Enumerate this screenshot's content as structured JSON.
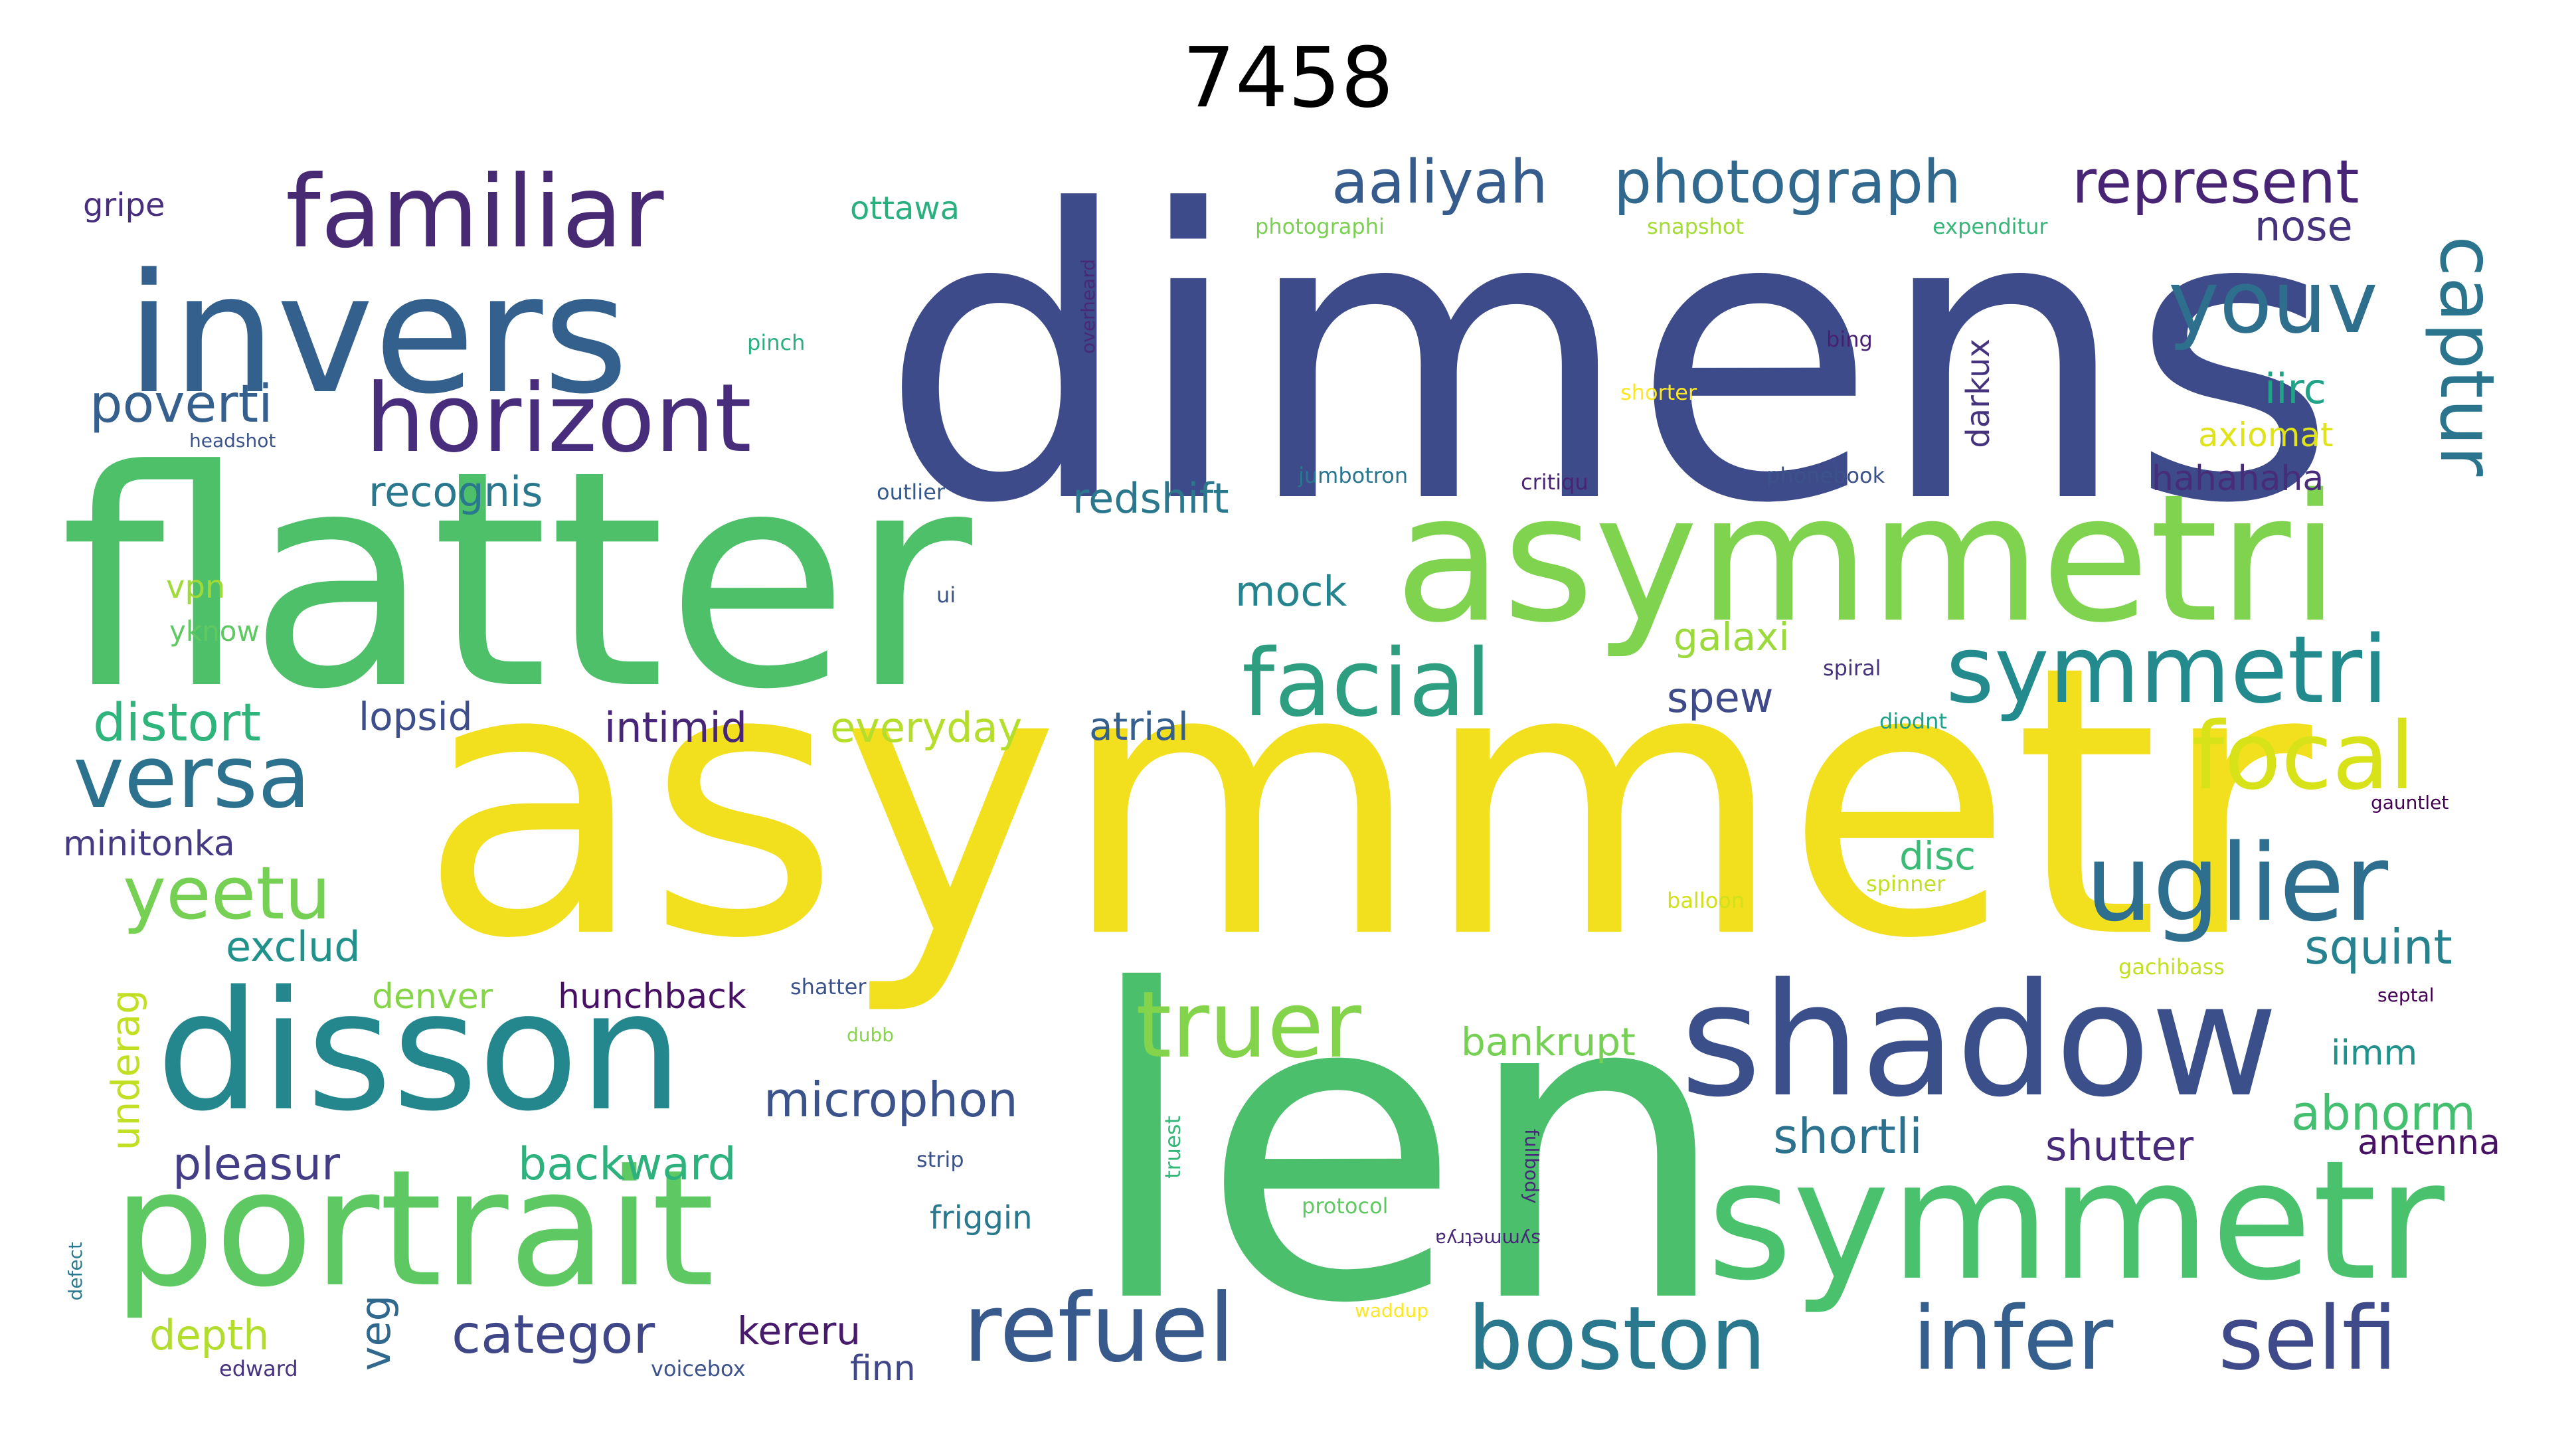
{
  "title": "7458",
  "word_cloud": {
    "words": [
      {
        "text": "dimens",
        "color": "#3e4b8a"
      },
      {
        "text": "asymmetr",
        "color": "#f2e01f"
      },
      {
        "text": "flatter",
        "color": "#4fc06a"
      },
      {
        "text": "len",
        "color": "#4cbf6c"
      },
      {
        "text": "asymmetri",
        "color": "#7fd34e"
      },
      {
        "text": "invers",
        "color": "#33608d"
      },
      {
        "text": "disson",
        "color": "#23878d"
      },
      {
        "text": "portrait",
        "color": "#5ec962"
      },
      {
        "text": "symmetr",
        "color": "#4ac16d"
      },
      {
        "text": "shadow",
        "color": "#3b4f8a"
      },
      {
        "text": "familiar",
        "color": "#482a74"
      },
      {
        "text": "horizont",
        "color": "#472d7b"
      },
      {
        "text": "youv",
        "color": "#2e6f8e"
      },
      {
        "text": "captur",
        "color": "#2b748e"
      },
      {
        "text": "symmetri",
        "color": "#238a8d"
      },
      {
        "text": "facial",
        "color": "#2e9e80"
      },
      {
        "text": "focal",
        "color": "#d8e219"
      },
      {
        "text": "uglier",
        "color": "#2e6e8e"
      },
      {
        "text": "versa",
        "color": "#2c718e"
      },
      {
        "text": "yeetu",
        "color": "#75d054"
      },
      {
        "text": "truer",
        "color": "#84d44b"
      },
      {
        "text": "refuel",
        "color": "#38598c"
      },
      {
        "text": "boston",
        "color": "#2a788e"
      },
      {
        "text": "infer",
        "color": "#355f8d"
      },
      {
        "text": "selfi",
        "color": "#3e4a89"
      },
      {
        "text": "aaliyah",
        "color": "#365c8d"
      },
      {
        "text": "photograph",
        "color": "#31688e"
      },
      {
        "text": "represent",
        "color": "#482475"
      },
      {
        "text": "nose",
        "color": "#46337e"
      },
      {
        "text": "poverti",
        "color": "#355f8d"
      },
      {
        "text": "recognis",
        "color": "#2a788e"
      },
      {
        "text": "redshift",
        "color": "#2a778e"
      },
      {
        "text": "mock",
        "color": "#25848e"
      },
      {
        "text": "distort",
        "color": "#2fb47c"
      },
      {
        "text": "lopsid",
        "color": "#3d4e8a"
      },
      {
        "text": "intimid",
        "color": "#482677"
      },
      {
        "text": "everyday",
        "color": "#b5de2b"
      },
      {
        "text": "atrial",
        "color": "#355f8d"
      },
      {
        "text": "spew",
        "color": "#3e4a89"
      },
      {
        "text": "galaxi",
        "color": "#9bd93c"
      },
      {
        "text": "iirc",
        "color": "#20a386"
      },
      {
        "text": "axiomat",
        "color": "#dfe318"
      },
      {
        "text": "hahahaha",
        "color": "#472c7a"
      },
      {
        "text": "minitonka",
        "color": "#443a83"
      },
      {
        "text": "exclud",
        "color": "#21918c"
      },
      {
        "text": "denver",
        "color": "#86d549"
      },
      {
        "text": "hunchback",
        "color": "#471063"
      },
      {
        "text": "microphon",
        "color": "#3b528b"
      },
      {
        "text": "pleasur",
        "color": "#433e85"
      },
      {
        "text": "backward",
        "color": "#2db27d"
      },
      {
        "text": "shortli",
        "color": "#2c728e"
      },
      {
        "text": "shutter",
        "color": "#472a7a"
      },
      {
        "text": "abnorm",
        "color": "#44bf70"
      },
      {
        "text": "squint",
        "color": "#26828e"
      },
      {
        "text": "disc",
        "color": "#3bbb75"
      },
      {
        "text": "bankrupt",
        "color": "#75d054"
      },
      {
        "text": "iimm",
        "color": "#21918c"
      },
      {
        "text": "antenna",
        "color": "#471164"
      },
      {
        "text": "underag",
        "color": "#c2df23"
      },
      {
        "text": "categor",
        "color": "#3f4788"
      },
      {
        "text": "kereru",
        "color": "#481a6c"
      },
      {
        "text": "depth",
        "color": "#b2dd2d"
      },
      {
        "text": "veg",
        "color": "#31688e"
      },
      {
        "text": "finn",
        "color": "#3f4788"
      },
      {
        "text": "friggin",
        "color": "#2a788e"
      },
      {
        "text": "truest",
        "color": "#35b779"
      },
      {
        "text": "darkux",
        "color": "#46337e"
      },
      {
        "text": "overheard",
        "color": "#482878"
      },
      {
        "text": "ottawa",
        "color": "#2ab07f"
      },
      {
        "text": "gripe",
        "color": "#472f7d"
      },
      {
        "text": "pinch",
        "color": "#2ab07f"
      },
      {
        "text": "headshot",
        "color": "#3b528b"
      },
      {
        "text": "vpn",
        "color": "#a0da39"
      },
      {
        "text": "yknow",
        "color": "#5ec962"
      },
      {
        "text": "outlier",
        "color": "#375a8c"
      },
      {
        "text": "jumbotron",
        "color": "#2a768e"
      },
      {
        "text": "critiqu",
        "color": "#482475"
      },
      {
        "text": "phonebook",
        "color": "#3b528b"
      },
      {
        "text": "ui",
        "color": "#3b528b"
      },
      {
        "text": "shorter",
        "color": "#fde725"
      },
      {
        "text": "bing",
        "color": "#482071"
      },
      {
        "text": "photographi",
        "color": "#7ad151"
      },
      {
        "text": "snapshot",
        "color": "#a5db36"
      },
      {
        "text": "expenditur",
        "color": "#35b779"
      },
      {
        "text": "spiral",
        "color": "#46327e"
      },
      {
        "text": "diodnt",
        "color": "#1fa088"
      },
      {
        "text": "gauntlet",
        "color": "#440154"
      },
      {
        "text": "balloon",
        "color": "#d0e11c"
      },
      {
        "text": "spinner",
        "color": "#c2df23"
      },
      {
        "text": "gachibass",
        "color": "#c2df23"
      },
      {
        "text": "septal",
        "color": "#440154"
      },
      {
        "text": "shatter",
        "color": "#3b528b"
      },
      {
        "text": "dubb",
        "color": "#86d549"
      },
      {
        "text": "strip",
        "color": "#3b528b"
      },
      {
        "text": "protocol",
        "color": "#5ec962"
      },
      {
        "text": "defect",
        "color": "#2a788e"
      },
      {
        "text": "edward",
        "color": "#46327e"
      },
      {
        "text": "voicebox",
        "color": "#3b528b"
      },
      {
        "text": "waddup",
        "color": "#fde725"
      },
      {
        "text": "fullbody",
        "color": "#482878"
      },
      {
        "text": "symmetrya",
        "color": "#482878"
      }
    ]
  }
}
